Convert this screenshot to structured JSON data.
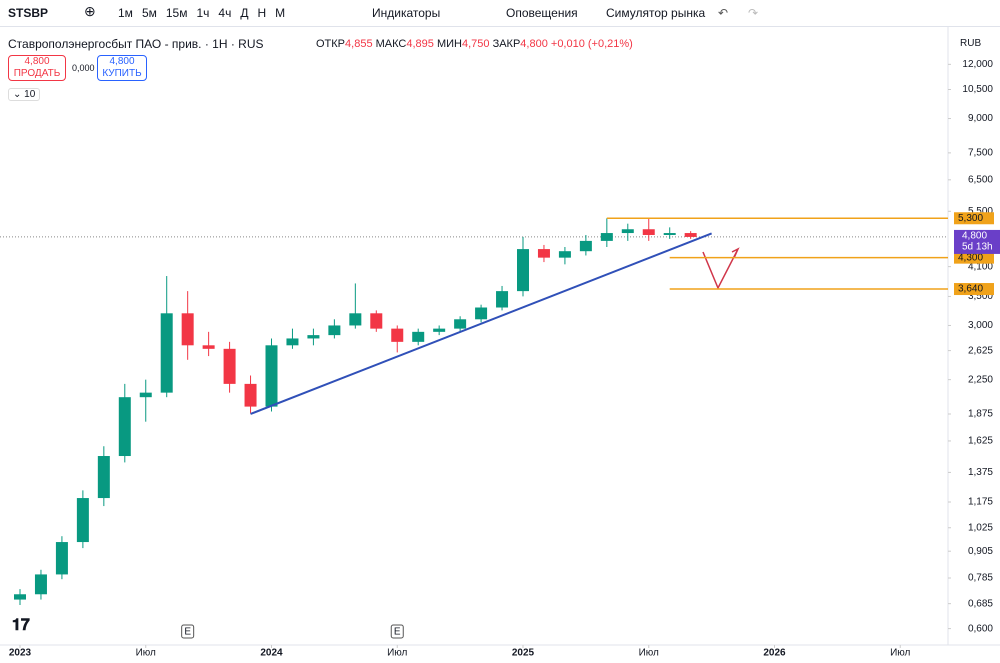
{
  "toolbar": {
    "symbol": "STSBP",
    "intervals": [
      "1м",
      "5м",
      "15м",
      "1ч",
      "4ч",
      "Д",
      "Н",
      "М"
    ],
    "indicators": "Индикаторы",
    "alerts": "Оповещения",
    "replay": "Симулятор рынка"
  },
  "legend": {
    "title": "Ставрополэнергосбыт ПАО - прив. · 1Н · RUS",
    "open_label": "ОТКР",
    "open": "4,855",
    "high_label": "МАКС",
    "high": "4,895",
    "low_label": "МИН",
    "low": "4,750",
    "close_label": "ЗАКР",
    "close": "4,800",
    "change": "+0,010 (+0,21%)",
    "sell_price": "4,800",
    "sell": "ПРОДАТЬ",
    "spread": "0,000",
    "buy_price": "4,800",
    "buy": "КУПИТЬ",
    "volume_toggle": "10",
    "currency": "RUB"
  },
  "chart_data": {
    "type": "candlestick",
    "log_scale": true,
    "up_color": "#089981",
    "down_color": "#f23645",
    "x": [
      "2023-01",
      "2023-02",
      "2023-03",
      "2023-04",
      "2023-05",
      "2023-06",
      "2023-07",
      "2023-08",
      "2023-09",
      "2023-10",
      "2023-11",
      "2023-12",
      "2024-01",
      "2024-02",
      "2024-03",
      "2024-04",
      "2024-05",
      "2024-06",
      "2024-07",
      "2024-08",
      "2024-09",
      "2024-10",
      "2024-11",
      "2024-12",
      "2025-01",
      "2025-02",
      "2025-03",
      "2025-04",
      "2025-05",
      "2025-06",
      "2025-07",
      "2025-08",
      "2025-09"
    ],
    "open": [
      0.7,
      0.72,
      0.8,
      0.95,
      1.2,
      1.5,
      2.05,
      2.1,
      3.2,
      2.7,
      2.65,
      2.2,
      1.95,
      2.7,
      2.8,
      2.85,
      3.0,
      3.2,
      2.95,
      2.75,
      2.9,
      2.95,
      3.1,
      3.3,
      3.6,
      4.5,
      4.3,
      4.45,
      4.7,
      4.9,
      5.0,
      4.85,
      4.9
    ],
    "high": [
      0.74,
      0.82,
      0.98,
      1.25,
      1.58,
      2.2,
      2.25,
      3.9,
      3.6,
      2.9,
      2.75,
      2.3,
      2.8,
      2.95,
      2.95,
      3.1,
      3.75,
      3.25,
      3.0,
      2.95,
      3.0,
      3.15,
      3.35,
      3.7,
      4.8,
      4.6,
      4.55,
      4.85,
      5.3,
      5.15,
      5.3,
      5.05,
      4.95
    ],
    "low": [
      0.68,
      0.7,
      0.78,
      0.92,
      1.15,
      1.45,
      1.8,
      2.05,
      2.5,
      2.55,
      2.1,
      1.88,
      1.9,
      2.65,
      2.7,
      2.8,
      2.95,
      2.9,
      2.6,
      2.7,
      2.85,
      2.9,
      3.05,
      3.25,
      3.5,
      4.2,
      4.15,
      4.35,
      4.55,
      4.7,
      4.7,
      4.75,
      4.75
    ],
    "close": [
      0.72,
      0.8,
      0.95,
      1.2,
      1.5,
      2.05,
      2.1,
      3.2,
      2.7,
      2.65,
      2.2,
      1.95,
      2.7,
      2.8,
      2.85,
      3.0,
      3.2,
      2.95,
      2.75,
      2.9,
      2.95,
      3.1,
      3.3,
      3.6,
      4.5,
      4.3,
      4.45,
      4.7,
      4.9,
      5.0,
      4.85,
      4.9,
      4.8
    ],
    "ylim": [
      0.55,
      14.4
    ],
    "yticks": [
      {
        "value": 12,
        "label": "12,000"
      },
      {
        "value": 10.5,
        "label": "10,500"
      },
      {
        "value": 9,
        "label": "9,000"
      },
      {
        "value": 7.5,
        "label": "7,500"
      },
      {
        "value": 6.5,
        "label": "6,500"
      },
      {
        "value": 5.5,
        "label": "5,500"
      },
      {
        "value": 4.1,
        "label": "4,100"
      },
      {
        "value": 3.5,
        "label": "3,500"
      },
      {
        "value": 3,
        "label": "3,000"
      },
      {
        "value": 2.625,
        "label": "2,625"
      },
      {
        "value": 2.25,
        "label": "2,250"
      },
      {
        "value": 1.875,
        "label": "1,875"
      },
      {
        "value": 1.625,
        "label": "1,625"
      },
      {
        "value": 1.375,
        "label": "1,375"
      },
      {
        "value": 1.175,
        "label": "1,175"
      },
      {
        "value": 1.025,
        "label": "1,025"
      },
      {
        "value": 0.905,
        "label": "0,905"
      },
      {
        "value": 0.785,
        "label": "0,785"
      },
      {
        "value": 0.685,
        "label": "0,685"
      },
      {
        "value": 0.6,
        "label": "0,600"
      }
    ],
    "xticks": [
      {
        "value": "2023-01",
        "label": "2023"
      },
      {
        "value": "2023-07",
        "label": "Июл"
      },
      {
        "value": "2024-01",
        "label": "2024"
      },
      {
        "value": "2024-07",
        "label": "Июл"
      },
      {
        "value": "2025-01",
        "label": "2025"
      },
      {
        "value": "2025-07",
        "label": "Июл"
      },
      {
        "value": "2026-01",
        "label": "2026"
      },
      {
        "value": "2026-07",
        "label": "Июл"
      }
    ],
    "events": [
      {
        "x": "2023-09",
        "label": "E"
      },
      {
        "x": "2024-07",
        "label": "E"
      }
    ],
    "trend_line": {
      "color": "#3050b8",
      "x": [
        "2023-12",
        "2025-10"
      ],
      "y": [
        1.875,
        4.89
      ]
    },
    "levels": [
      {
        "value": 5.3,
        "label": "5,300",
        "start": "2025-05"
      },
      {
        "value": 4.3,
        "label": "4,300",
        "start": "2025-08"
      },
      {
        "value": 3.64,
        "label": "3,640",
        "start": "2025-08"
      }
    ],
    "level_color": "#f0a21a",
    "current_price": {
      "value": 4.8,
      "label": "4,800",
      "countdown": "5d 13h",
      "color": "#6a3fc8"
    }
  }
}
